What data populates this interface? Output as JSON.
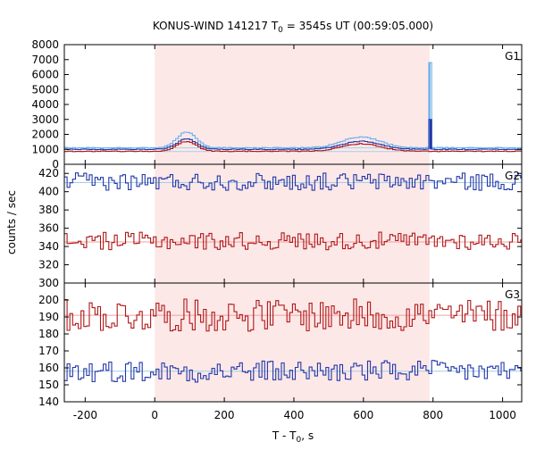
{
  "chart_data": {
    "type": "line",
    "title": "KONUS-WIND 141217 T",
    "title_sub": "0",
    "title_rest": " = 3545s UT (00:59:05.000)",
    "xlabel": "T - T",
    "xlabel_sub": "0",
    "xlabel_rest": ", s",
    "ylabel": "counts / sec",
    "xlim": [
      -260,
      1055
    ],
    "x_ticks": [
      "-200",
      "0",
      "200",
      "400",
      "600",
      "800",
      "1000"
    ],
    "x_tick_values": [
      -200,
      0,
      200,
      400,
      600,
      800,
      1000
    ],
    "shaded_interval": [
      0,
      790
    ],
    "shade_color": "#fde8e8",
    "bin_width": 8,
    "panels": [
      {
        "label": "G1",
        "ylim": [
          0,
          8000
        ],
        "y_ticks": [
          "0",
          "1000",
          "2000",
          "3000",
          "4000",
          "5000",
          "6000",
          "7000",
          "8000"
        ],
        "y_tick_values": [
          0,
          1000,
          2000,
          3000,
          4000,
          5000,
          6000,
          7000,
          8000
        ],
        "series": [
          {
            "role": "bg1",
            "color": "#a0cfe8",
            "base": 1100
          },
          {
            "role": "bg2",
            "color": "#a0cfe8",
            "base": 850
          },
          {
            "role": "s1",
            "color": "#6ab0e8",
            "base": 1100,
            "noise": 20,
            "peaks": [
              {
                "center": 88,
                "width": 28,
                "amp": 1050
              },
              {
                "center": 590,
                "width": 55,
                "amp": 720
              }
            ],
            "spike": {
              "x": 790,
              "value": 6800
            }
          },
          {
            "role": "s2",
            "color": "#2238a8",
            "base": 1000,
            "noise": 15,
            "peaks": [
              {
                "center": 88,
                "width": 28,
                "amp": 700
              },
              {
                "center": 590,
                "width": 55,
                "amp": 540
              }
            ],
            "spike": {
              "x": 793,
              "value": 3000
            }
          },
          {
            "role": "s3",
            "color": "#b01818",
            "base": 870,
            "noise": 15,
            "peaks": [
              {
                "center": 88,
                "width": 28,
                "amp": 660
              },
              {
                "center": 590,
                "width": 55,
                "amp": 500
              }
            ]
          }
        ]
      },
      {
        "label": "G2",
        "ylim": [
          300,
          430
        ],
        "y_ticks": [
          "300",
          "320",
          "340",
          "360",
          "380",
          "400",
          "420"
        ],
        "y_tick_values": [
          300,
          320,
          340,
          360,
          380,
          400,
          420
        ],
        "series": [
          {
            "role": "bg",
            "color": "#a0cfe8",
            "base": 410
          },
          {
            "role": "counts",
            "color": "#2238a8",
            "base": 411,
            "noise": 6
          },
          {
            "role": "bg",
            "color": "#f0a0a0",
            "base": 345
          },
          {
            "role": "counts",
            "color": "#b01818",
            "base": 346,
            "noise": 6
          }
        ]
      },
      {
        "label": "G3",
        "ylim": [
          140,
          210
        ],
        "y_ticks": [
          "140",
          "150",
          "160",
          "170",
          "180",
          "190",
          "200"
        ],
        "y_tick_values": [
          140,
          150,
          160,
          170,
          180,
          190,
          200
        ],
        "series": [
          {
            "role": "bg",
            "color": "#f0a0a0",
            "base": 191
          },
          {
            "role": "counts",
            "color": "#b01818",
            "base": 191,
            "noise": 6
          },
          {
            "role": "bg",
            "color": "#a0cfe8",
            "base": 158
          },
          {
            "role": "counts",
            "color": "#2238a8",
            "base": 158,
            "noise": 4
          }
        ]
      }
    ]
  }
}
